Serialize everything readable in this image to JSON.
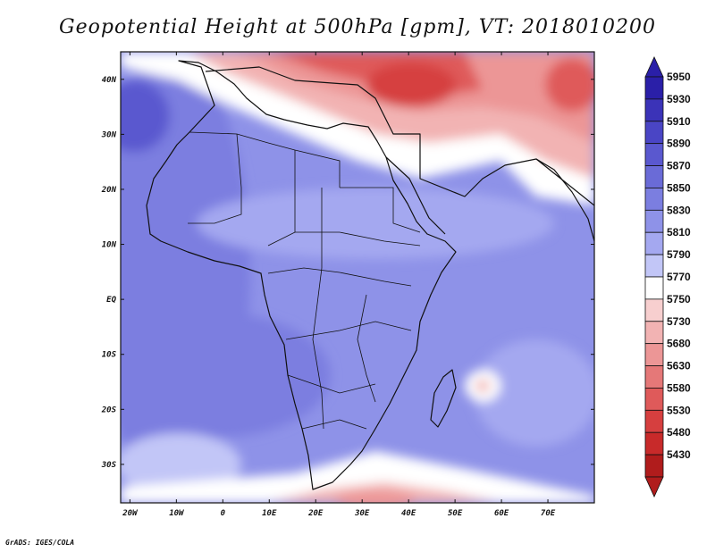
{
  "chart_data": {
    "type": "heatmap",
    "title": "Geopotential Height at 500hPa [gpm], VT: 2018010200",
    "variable": "Geopotential Height",
    "level": "500hPa",
    "units": "gpm",
    "valid_time": "2018010200",
    "x_range": [
      -22,
      80
    ],
    "y_range": [
      -37,
      45
    ],
    "x_ticks": [
      {
        "value": -20,
        "label": "20W"
      },
      {
        "value": -10,
        "label": "10W"
      },
      {
        "value": 0,
        "label": "0"
      },
      {
        "value": 10,
        "label": "10E"
      },
      {
        "value": 20,
        "label": "20E"
      },
      {
        "value": 30,
        "label": "30E"
      },
      {
        "value": 40,
        "label": "40E"
      },
      {
        "value": 50,
        "label": "50E"
      },
      {
        "value": 60,
        "label": "60E"
      },
      {
        "value": 70,
        "label": "70E"
      }
    ],
    "y_ticks": [
      {
        "value": 40,
        "label": "40N"
      },
      {
        "value": 30,
        "label": "30N"
      },
      {
        "value": 20,
        "label": "20N"
      },
      {
        "value": 10,
        "label": "10N"
      },
      {
        "value": 0,
        "label": "EQ"
      },
      {
        "value": -10,
        "label": "10S"
      },
      {
        "value": -20,
        "label": "20S"
      },
      {
        "value": -30,
        "label": "30S"
      }
    ],
    "colorbar": {
      "levels": [
        "5950",
        "5930",
        "5910",
        "5890",
        "5870",
        "5850",
        "5830",
        "5810",
        "5790",
        "5770",
        "5750",
        "5730",
        "5680",
        "5630",
        "5580",
        "5530",
        "5480",
        "5430"
      ],
      "colors": [
        "#2a1fa8",
        "#3b33b8",
        "#4a45c5",
        "#5a58cf",
        "#6a6bd7",
        "#7b7ee0",
        "#8e92e8",
        "#a4a8f0",
        "#c2c6f7",
        "#ffffff",
        "#f7cfcf",
        "#f2b3b3",
        "#ec9696",
        "#e57878",
        "#df5a5a",
        "#d63f3f",
        "#c82a2a",
        "#b01c1c"
      ]
    },
    "field_description": "Blue (5800-5890 gpm) over tropical and southern Africa; red (below 5750 gpm) over Mediterranean, Middle East and the Southern Ocean edge"
  },
  "footer": "GrADS: IGES/COLA"
}
